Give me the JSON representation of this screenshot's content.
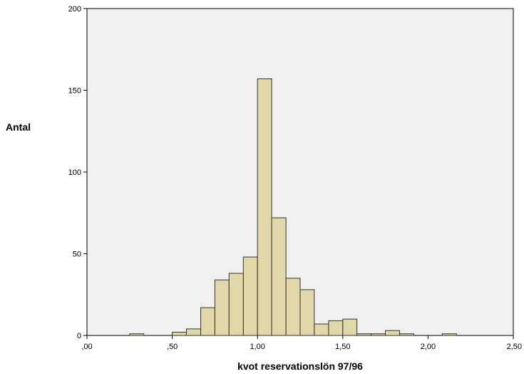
{
  "chart_data": {
    "type": "bar",
    "xlabel": "kvot reservationslön 97/96",
    "ylabel": "Antal",
    "xlim": [
      0,
      2.5
    ],
    "ylim": [
      0,
      200
    ],
    "x_ticks": [
      {
        "value": 0.0,
        "label": ",00"
      },
      {
        "value": 0.5,
        "label": ",50"
      },
      {
        "value": 1.0,
        "label": "1,00"
      },
      {
        "value": 1.5,
        "label": "1,50"
      },
      {
        "value": 2.0,
        "label": "2,00"
      },
      {
        "value": 2.5,
        "label": "2,50"
      }
    ],
    "y_ticks": [
      {
        "value": 0,
        "label": "0"
      },
      {
        "value": 50,
        "label": "50"
      },
      {
        "value": 100,
        "label": "100"
      },
      {
        "value": 150,
        "label": "150"
      },
      {
        "value": 200,
        "label": "200"
      }
    ],
    "bins": [
      {
        "x0": 0.25,
        "x1": 0.333,
        "count": 1
      },
      {
        "x0": 0.5,
        "x1": 0.583,
        "count": 2
      },
      {
        "x0": 0.583,
        "x1": 0.667,
        "count": 4
      },
      {
        "x0": 0.667,
        "x1": 0.75,
        "count": 17
      },
      {
        "x0": 0.75,
        "x1": 0.833,
        "count": 34
      },
      {
        "x0": 0.833,
        "x1": 0.917,
        "count": 38
      },
      {
        "x0": 0.917,
        "x1": 1.0,
        "count": 48
      },
      {
        "x0": 1.0,
        "x1": 1.083,
        "count": 157
      },
      {
        "x0": 1.083,
        "x1": 1.167,
        "count": 72
      },
      {
        "x0": 1.167,
        "x1": 1.25,
        "count": 35
      },
      {
        "x0": 1.25,
        "x1": 1.333,
        "count": 28
      },
      {
        "x0": 1.333,
        "x1": 1.417,
        "count": 7
      },
      {
        "x0": 1.417,
        "x1": 1.5,
        "count": 9
      },
      {
        "x0": 1.5,
        "x1": 1.583,
        "count": 10
      },
      {
        "x0": 1.583,
        "x1": 1.667,
        "count": 1
      },
      {
        "x0": 1.667,
        "x1": 1.75,
        "count": 1
      },
      {
        "x0": 1.75,
        "x1": 1.833,
        "count": 3
      },
      {
        "x0": 1.833,
        "x1": 1.917,
        "count": 1
      },
      {
        "x0": 2.083,
        "x1": 2.167,
        "count": 1
      }
    ],
    "grid": false,
    "colors": {
      "bar_fill": "#e0d8a8",
      "bar_stroke": "#333333",
      "plot_background": "#f0f0f0",
      "page_background": "#ffffff"
    }
  }
}
